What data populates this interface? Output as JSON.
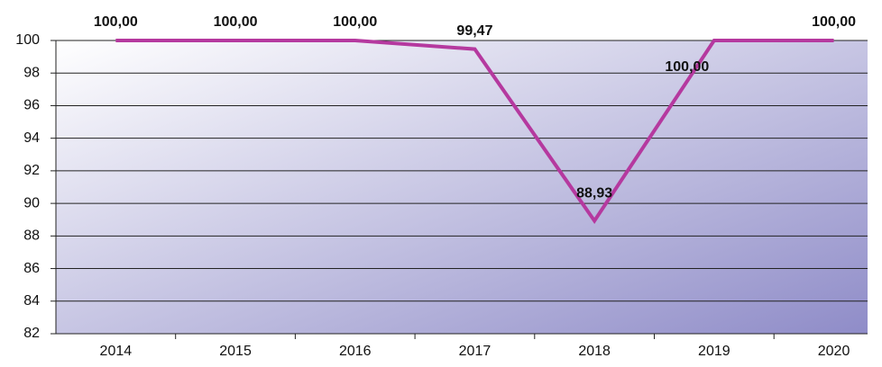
{
  "chart_data": {
    "type": "line",
    "categories": [
      "2014",
      "2015",
      "2016",
      "2017",
      "2018",
      "2019",
      "2020"
    ],
    "series": [
      {
        "color": "#b5399f",
        "values": [
          100,
          100,
          100,
          99.47,
          88.93,
          100,
          100
        ],
        "value_labels": [
          "100,00",
          "100,00",
          "100,00",
          "99,47",
          "88,93",
          "100,00",
          "100,00"
        ]
      }
    ],
    "ylim": [
      82,
      100
    ],
    "yticks": [
      82,
      84,
      86,
      88,
      90,
      92,
      94,
      96,
      98,
      100
    ],
    "grid": true
  }
}
